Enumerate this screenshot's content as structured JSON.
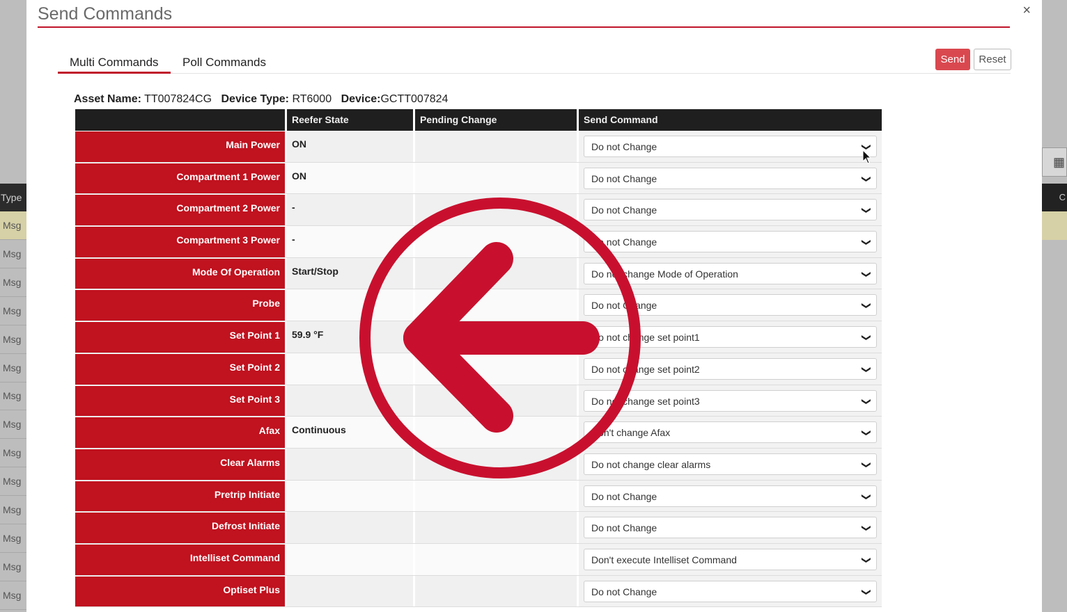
{
  "background": {
    "left_header": "Type",
    "left_rows": [
      "Msg",
      "Msg",
      "Msg",
      "Msg",
      "Msg",
      "Msg",
      "Msg",
      "Msg",
      "Msg",
      "Msg",
      "Msg",
      "Msg",
      "Msg",
      "Msg"
    ],
    "right_icon": "grid-icon"
  },
  "modal": {
    "title": "Send Commands",
    "close_label": "×"
  },
  "tabs": [
    {
      "label": "Multi Commands",
      "active": true
    },
    {
      "label": "Poll Commands",
      "active": false
    }
  ],
  "buttons": {
    "send": "Send",
    "reset": "Reset"
  },
  "asset": {
    "asset_name_label": "Asset Name:",
    "asset_name": "TT007824CG",
    "device_type_label": "Device Type:",
    "device_type": "RT6000",
    "device_label": "Device:",
    "device": "GCTT007824"
  },
  "table": {
    "headers": [
      "",
      "Reefer State",
      "Pending Change",
      "Send Command"
    ],
    "rows": [
      {
        "label": "Main Power",
        "state": "ON",
        "pending": "",
        "command": "Do not Change"
      },
      {
        "label": "Compartment 1 Power",
        "state": "ON",
        "pending": "",
        "command": "Do not Change"
      },
      {
        "label": "Compartment 2 Power",
        "state": "-",
        "pending": "",
        "command": "Do not Change"
      },
      {
        "label": "Compartment 3 Power",
        "state": "-",
        "pending": "",
        "command": "Do not Change"
      },
      {
        "label": "Mode Of Operation",
        "state": "Start/Stop",
        "pending": "",
        "command": "Do not change Mode of Operation"
      },
      {
        "label": "Probe",
        "state": "",
        "pending": "",
        "command": "Do not Change"
      },
      {
        "label": "Set Point 1",
        "state": "59.9 °F",
        "pending": "",
        "command": "Do not change set point1"
      },
      {
        "label": "Set Point 2",
        "state": "",
        "pending": "",
        "command": "Do not change set point2"
      },
      {
        "label": "Set Point 3",
        "state": "",
        "pending": "",
        "command": "Do not change set point3"
      },
      {
        "label": "Afax",
        "state": "Continuous",
        "pending": "",
        "command": "Don't change Afax"
      },
      {
        "label": "Clear Alarms",
        "state": "",
        "pending": "",
        "command": "Do not change clear alarms"
      },
      {
        "label": "Pretrip Initiate",
        "state": "",
        "pending": "",
        "command": "Do not Change"
      },
      {
        "label": "Defrost Initiate",
        "state": "",
        "pending": "",
        "command": "Do not Change"
      },
      {
        "label": "Intelliset Command",
        "state": "",
        "pending": "",
        "command": "Don't execute Intelliset Command"
      },
      {
        "label": "Optiset Plus",
        "state": "",
        "pending": "",
        "command": "Do not Change"
      }
    ]
  },
  "overlay": {
    "icon": "back-arrow-circle-icon",
    "color": "#c8102e"
  }
}
